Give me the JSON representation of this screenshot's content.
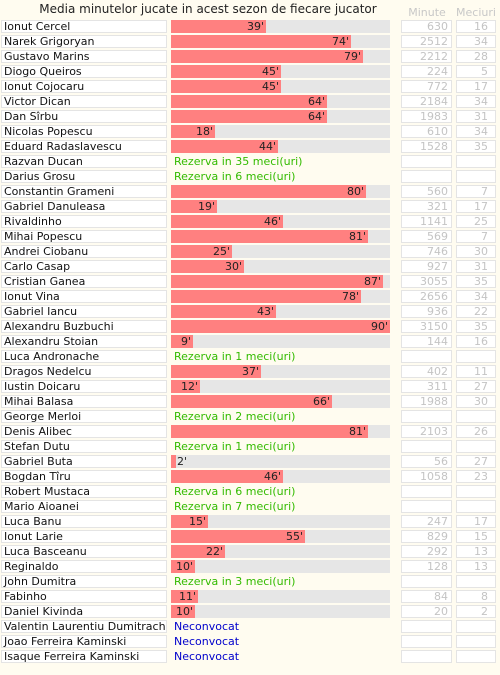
{
  "title": "Media minutelor jucate in acest sezon de fiecare jucator",
  "headers": {
    "minutes": "Minute",
    "matches": "Meciuri"
  },
  "colors": {
    "bar": "#ff8080",
    "track": "#e6e6e6",
    "reserve_text": "#33bb00",
    "not_called_text": "#0000cc"
  },
  "chart_data": {
    "type": "bar",
    "orientation": "horizontal",
    "title": "Media minutelor jucate in acest sezon de fiecare jucator",
    "xlim": [
      0,
      90
    ],
    "rows": [
      {
        "name": "Ionut Cercel",
        "avg": 39,
        "label": "39'",
        "minutes": "630",
        "matches": "16"
      },
      {
        "name": "Narek Grigoryan",
        "avg": 74,
        "label": "74'",
        "minutes": "2512",
        "matches": "34"
      },
      {
        "name": "Gustavo Marins",
        "avg": 79,
        "label": "79'",
        "minutes": "2212",
        "matches": "28"
      },
      {
        "name": "Diogo Queiros",
        "avg": 45,
        "label": "45'",
        "minutes": "224",
        "matches": "5"
      },
      {
        "name": "Ionut Cojocaru",
        "avg": 45,
        "label": "45'",
        "minutes": "772",
        "matches": "17"
      },
      {
        "name": "Victor Dican",
        "avg": 64,
        "label": "64'",
        "minutes": "2184",
        "matches": "34"
      },
      {
        "name": "Dan Sîrbu",
        "avg": 64,
        "label": "64'",
        "minutes": "1983",
        "matches": "31"
      },
      {
        "name": "Nicolas Popescu",
        "avg": 18,
        "label": "18'",
        "minutes": "610",
        "matches": "34"
      },
      {
        "name": "Eduard Radaslavescu",
        "avg": 44,
        "label": "44'",
        "minutes": "1528",
        "matches": "35"
      },
      {
        "name": "Razvan Ducan",
        "note": "Rezerva in 35 meci(uri)",
        "note_type": "reserve",
        "minutes": "",
        "matches": ""
      },
      {
        "name": "Darius Grosu",
        "note": "Rezerva in 6 meci(uri)",
        "note_type": "reserve",
        "minutes": "",
        "matches": ""
      },
      {
        "name": "Constantin Grameni",
        "avg": 80,
        "label": "80'",
        "minutes": "560",
        "matches": "7"
      },
      {
        "name": "Gabriel Danuleasa",
        "avg": 19,
        "label": "19'",
        "minutes": "321",
        "matches": "17"
      },
      {
        "name": "Rivaldinho",
        "avg": 46,
        "label": "46'",
        "minutes": "1141",
        "matches": "25"
      },
      {
        "name": "Mihai Popescu",
        "avg": 81,
        "label": "81'",
        "minutes": "569",
        "matches": "7"
      },
      {
        "name": "Andrei Ciobanu",
        "avg": 25,
        "label": "25'",
        "minutes": "746",
        "matches": "30"
      },
      {
        "name": "Carlo Casap",
        "avg": 30,
        "label": "30'",
        "minutes": "927",
        "matches": "31"
      },
      {
        "name": "Cristian Ganea",
        "avg": 87,
        "label": "87'",
        "minutes": "3055",
        "matches": "35"
      },
      {
        "name": "Ionut Vina",
        "avg": 78,
        "label": "78'",
        "minutes": "2656",
        "matches": "34"
      },
      {
        "name": "Gabriel Iancu",
        "avg": 43,
        "label": "43'",
        "minutes": "936",
        "matches": "22"
      },
      {
        "name": "Alexandru Buzbuchi",
        "avg": 90,
        "label": "90'",
        "minutes": "3150",
        "matches": "35"
      },
      {
        "name": "Alexandru Stoian",
        "avg": 9,
        "label": "9'",
        "minutes": "144",
        "matches": "16"
      },
      {
        "name": "Luca Andronache",
        "note": "Rezerva in 1 meci(uri)",
        "note_type": "reserve",
        "minutes": "",
        "matches": ""
      },
      {
        "name": "Dragos Nedelcu",
        "avg": 37,
        "label": "37'",
        "minutes": "402",
        "matches": "11"
      },
      {
        "name": "Iustin Doicaru",
        "avg": 12,
        "label": "12'",
        "minutes": "311",
        "matches": "27"
      },
      {
        "name": "Mihai Balasa",
        "avg": 66,
        "label": "66'",
        "minutes": "1988",
        "matches": "30"
      },
      {
        "name": "George Merloi",
        "note": "Rezerva in 2 meci(uri)",
        "note_type": "reserve",
        "minutes": "",
        "matches": ""
      },
      {
        "name": "Denis Alibec",
        "avg": 81,
        "label": "81'",
        "minutes": "2103",
        "matches": "26"
      },
      {
        "name": "Stefan Dutu",
        "note": "Rezerva in 1 meci(uri)",
        "note_type": "reserve",
        "minutes": "",
        "matches": ""
      },
      {
        "name": "Gabriel Buta",
        "avg": 2,
        "label": "2'",
        "minutes": "56",
        "matches": "27"
      },
      {
        "name": "Bogdan Tîru",
        "avg": 46,
        "label": "46'",
        "minutes": "1058",
        "matches": "23"
      },
      {
        "name": "Robert Mustaca",
        "note": "Rezerva in 6 meci(uri)",
        "note_type": "reserve",
        "minutes": "",
        "matches": ""
      },
      {
        "name": "Mario Aioanei",
        "note": "Rezerva in 7 meci(uri)",
        "note_type": "reserve",
        "minutes": "",
        "matches": ""
      },
      {
        "name": "Luca Banu",
        "avg": 15,
        "label": "15'",
        "minutes": "247",
        "matches": "17"
      },
      {
        "name": "Ionut Larie",
        "avg": 55,
        "label": "55'",
        "minutes": "829",
        "matches": "15"
      },
      {
        "name": "Luca Basceanu",
        "avg": 22,
        "label": "22'",
        "minutes": "292",
        "matches": "13"
      },
      {
        "name": "Reginaldo",
        "avg": 10,
        "label": "10'",
        "minutes": "128",
        "matches": "13"
      },
      {
        "name": "John Dumitra",
        "note": "Rezerva in 3 meci(uri)",
        "note_type": "reserve",
        "minutes": "",
        "matches": ""
      },
      {
        "name": "Fabinho",
        "avg": 11,
        "label": "11'",
        "minutes": "84",
        "matches": "8"
      },
      {
        "name": "Daniel Kivinda",
        "avg": 10,
        "label": "10'",
        "minutes": "20",
        "matches": "2"
      },
      {
        "name": "Valentin Laurentiu Dumitrache",
        "note": "Neconvocat",
        "note_type": "notcalled",
        "minutes": "",
        "matches": ""
      },
      {
        "name": "Joao Ferreira Kaminski",
        "note": "Neconvocat",
        "note_type": "notcalled",
        "minutes": "",
        "matches": ""
      },
      {
        "name": "Isaque Ferreira Kaminski",
        "note": "Neconvocat",
        "note_type": "notcalled",
        "minutes": "",
        "matches": ""
      }
    ]
  }
}
